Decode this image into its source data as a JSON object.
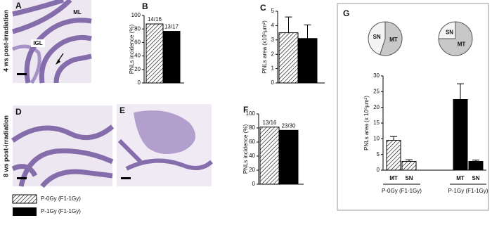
{
  "row_labels": [
    "4 ws post-irradiation",
    "8 ws post-irradiation"
  ],
  "images": [
    {
      "panel": "A",
      "labels": [
        "ML",
        "IGL"
      ]
    },
    {
      "panel": "D"
    },
    {
      "panel": "E"
    }
  ],
  "legend": [
    "P-0Gy (F1-1Gy)",
    "P-1Gy (F1-1Gy)"
  ],
  "chart_data": [
    {
      "type": "bar",
      "label": "B",
      "ylabel": "PNLs incidence (%)",
      "categories": [
        null,
        null
      ],
      "values": [
        87.5,
        76.5
      ],
      "value_labels": [
        "14/16",
        "13/17"
      ],
      "colors": [
        "hatch",
        "#000000"
      ],
      "ylim": [
        0,
        100
      ],
      "yticks": [
        0,
        20,
        40,
        60,
        80,
        100
      ]
    },
    {
      "type": "bar",
      "label": "C",
      "ylabel": "PNLs area (x10⁵µm²)",
      "categories": [
        null,
        null
      ],
      "values": [
        3.5,
        3.1
      ],
      "errors": [
        1.1,
        0.95
      ],
      "colors": [
        "hatch",
        "#000000"
      ],
      "ylim": [
        0,
        5
      ],
      "yticks": [
        0,
        1,
        2,
        3,
        4,
        5
      ]
    },
    {
      "type": "bar",
      "label": "F",
      "ylabel": "PNLs incidence (%)",
      "categories": [
        null,
        null
      ],
      "values": [
        81.25,
        76.7
      ],
      "value_labels": [
        "13/16",
        "23/30"
      ],
      "colors": [
        "hatch",
        "#000000"
      ],
      "ylim": [
        0,
        100
      ],
      "yticks": [
        0,
        20,
        40,
        60,
        80,
        100
      ]
    },
    {
      "type": "bar",
      "label": "G",
      "ylabel": "PNLs area (x 10⁵µm²)",
      "categories": [
        "MT",
        "SN",
        "MT",
        "SN"
      ],
      "groups": [
        "P-0Gy (F1-1Gy)",
        "P-1Gy (F1-1Gy)"
      ],
      "values": [
        9.5,
        2.8,
        22.5,
        2.8
      ],
      "errors": [
        1.2,
        0.5,
        5,
        0.4
      ],
      "colors": [
        "hatch",
        "hatch",
        "#000000",
        "#000000"
      ],
      "ylim": [
        0,
        30
      ],
      "yticks": [
        0,
        5,
        10,
        15,
        20,
        25,
        30
      ]
    },
    {
      "type": "pie",
      "categories": [
        "MT",
        "SN"
      ],
      "values": [
        55,
        45
      ],
      "colors": [
        "#c8c8c8",
        "#f4f4f4"
      ]
    },
    {
      "type": "pie",
      "categories": [
        "MT",
        "SN"
      ],
      "values": [
        75,
        25
      ],
      "colors": [
        "#c8c8c8",
        "#f4f4f4"
      ]
    }
  ]
}
